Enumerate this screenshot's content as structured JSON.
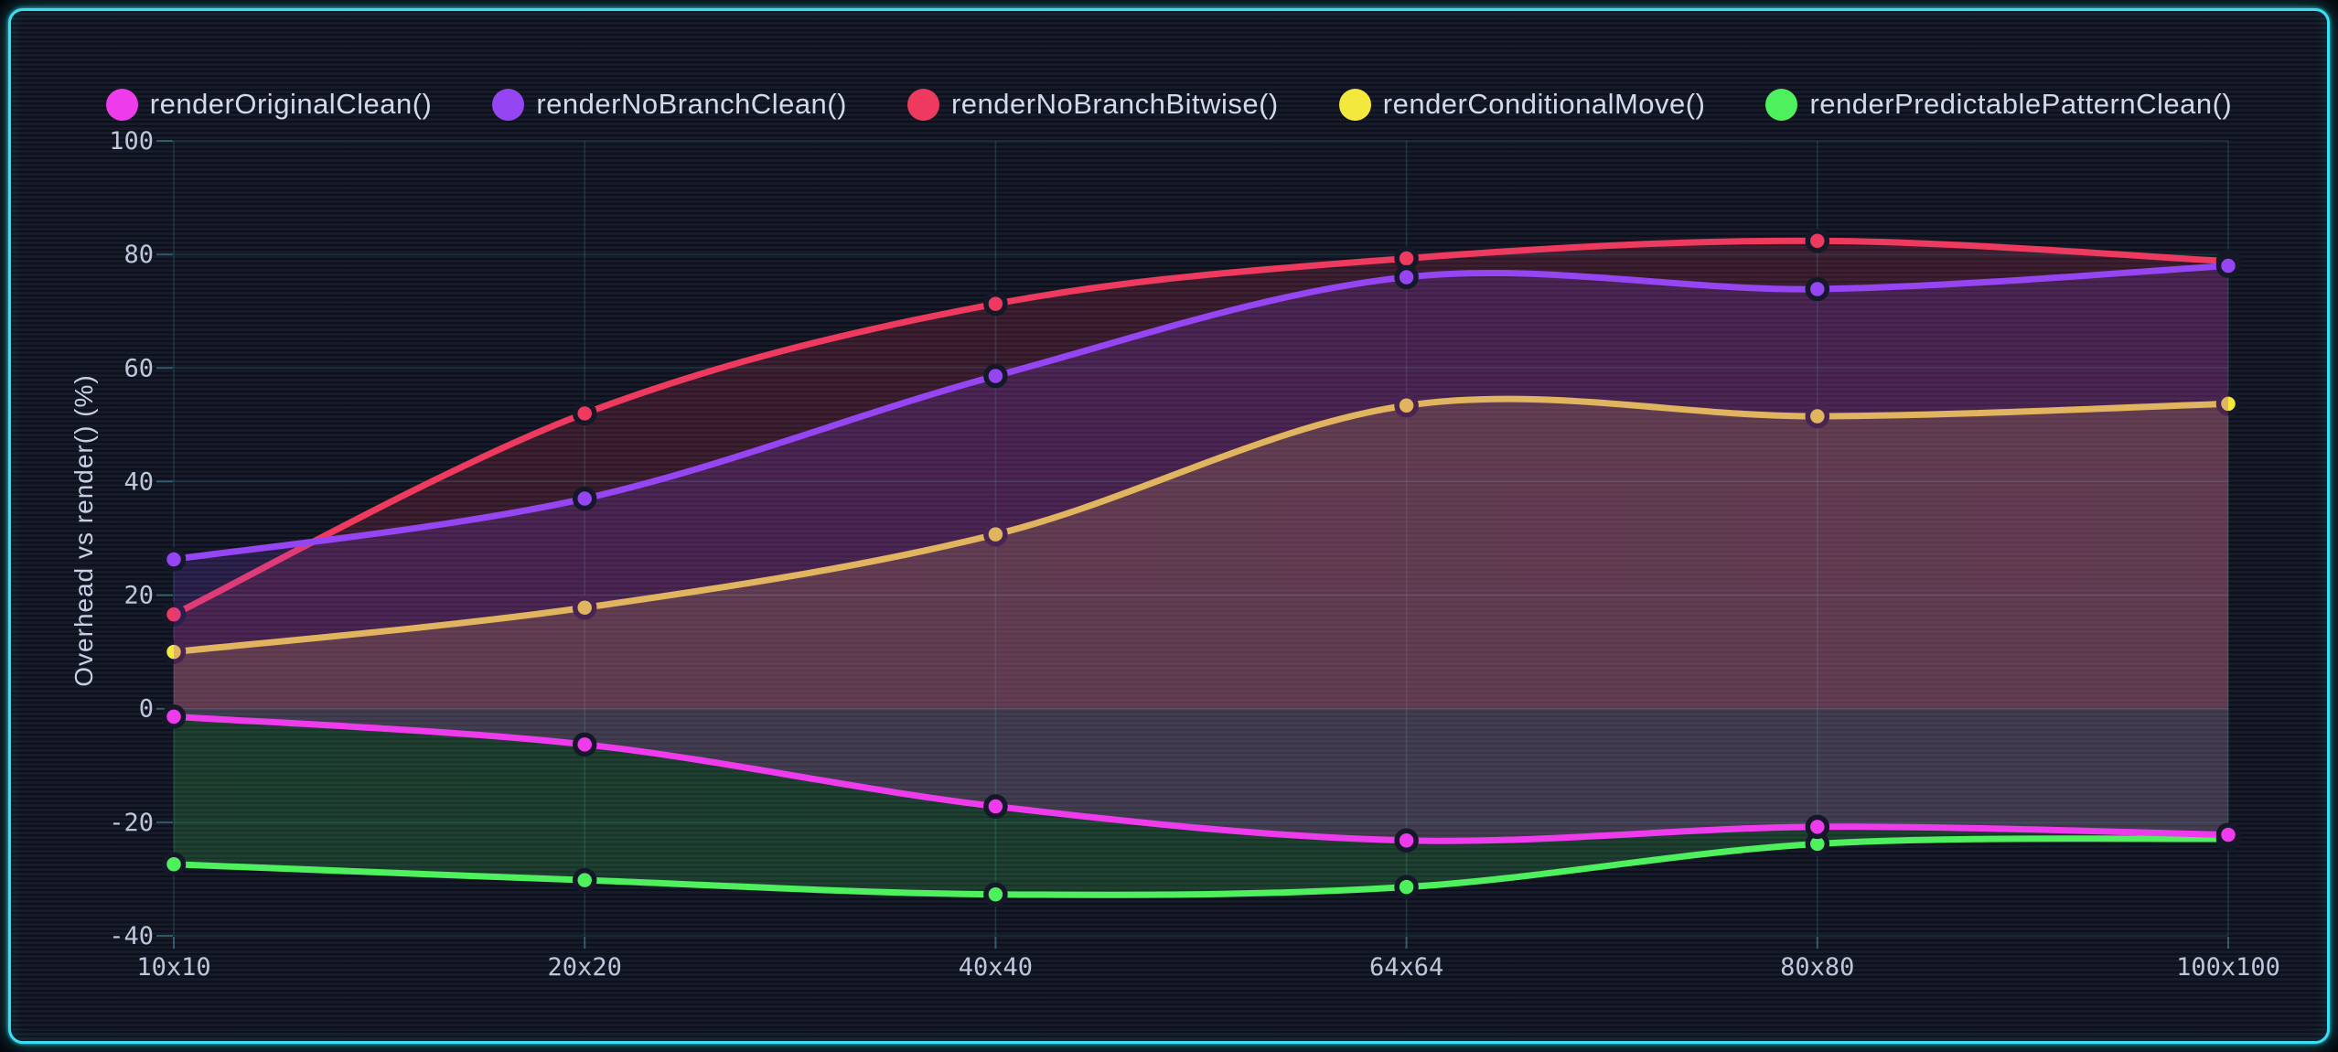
{
  "frame": {
    "accent_color": "#3adef2",
    "background_color": "#171b29"
  },
  "chart_data": {
    "type": "line",
    "title": "",
    "xlabel": "",
    "ylabel": "Overhead vs render() (%)",
    "categories": [
      "10x10",
      "20x20",
      "40x40",
      "64x64",
      "80x80",
      "100x100"
    ],
    "series": [
      {
        "name": "renderOriginalClean()",
        "color": "#ee3cec",
        "values": [
          -1.4,
          -6.3,
          -17.2,
          -23.2,
          -20.8,
          -22.2
        ]
      },
      {
        "name": "renderNoBranchClean()",
        "color": "#9545f2",
        "values": [
          26.3,
          37.0,
          58.6,
          76.0,
          73.9,
          78.0
        ]
      },
      {
        "name": "renderNoBranchBitwise()",
        "color": "#ee3a5e",
        "values": [
          16.6,
          52.0,
          71.3,
          79.3,
          82.4,
          78.8
        ]
      },
      {
        "name": "renderConditionalMove()",
        "color": "#f2e93c",
        "values": [
          10.0,
          17.8,
          30.7,
          53.4,
          51.5,
          53.7
        ]
      },
      {
        "name": "renderPredictablePatternClean()",
        "color": "#4ef05e",
        "values": [
          -27.4,
          -30.2,
          -32.7,
          -31.4,
          -23.8,
          -22.9
        ]
      }
    ],
    "ylim": [
      -40,
      100
    ],
    "y_ticks": [
      100,
      80,
      60,
      40,
      20,
      0,
      -20,
      -40
    ],
    "fill": "tozero",
    "fill_opacity": 0.17,
    "grid": true,
    "grid_color": "rgba(96,210,222,0.16)",
    "axis_tick_color": "rgba(96,210,222,0.38)",
    "tick_label_color": "#bfc6db",
    "legend_position": "top",
    "line_width": 7,
    "point_radius": 10.5,
    "point_ring_color": "#141828",
    "curve_tension": "catmull-rom"
  }
}
